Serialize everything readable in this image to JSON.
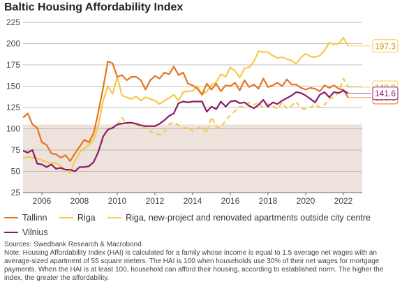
{
  "chart_data": {
    "type": "line",
    "title": "Baltic Housing Affordability Index",
    "xlabel": "",
    "ylabel": "",
    "xlim": [
      2005,
      2023
    ],
    "ylim": [
      25,
      225
    ],
    "y_ticks": [
      25,
      50,
      75,
      100,
      125,
      150,
      175,
      200,
      225
    ],
    "x_ticks": [
      2006,
      2008,
      2010,
      2012,
      2014,
      2016,
      2018,
      2020,
      2022
    ],
    "grid": true,
    "shaded_band": [
      25,
      105
    ],
    "legend_position": "bottom",
    "series": [
      {
        "name": "Tallinn",
        "style": "solid",
        "color": "#e8731e",
        "end_label": "136.6",
        "points": [
          [
            2005.0,
            113
          ],
          [
            2005.25,
            118
          ],
          [
            2005.5,
            105
          ],
          [
            2005.75,
            101
          ],
          [
            2006.0,
            84
          ],
          [
            2006.25,
            81
          ],
          [
            2006.5,
            71
          ],
          [
            2006.75,
            70
          ],
          [
            2007.0,
            66
          ],
          [
            2007.25,
            69
          ],
          [
            2007.5,
            62
          ],
          [
            2007.75,
            71
          ],
          [
            2008.0,
            79
          ],
          [
            2008.25,
            87
          ],
          [
            2008.5,
            84
          ],
          [
            2008.75,
            95
          ],
          [
            2009.0,
            120
          ],
          [
            2009.25,
            148
          ],
          [
            2009.5,
            179
          ],
          [
            2009.75,
            177
          ],
          [
            2010.0,
            161
          ],
          [
            2010.25,
            163
          ],
          [
            2010.5,
            157
          ],
          [
            2010.75,
            161
          ],
          [
            2011.0,
            161
          ],
          [
            2011.25,
            157
          ],
          [
            2011.5,
            146
          ],
          [
            2011.75,
            157
          ],
          [
            2012.0,
            162
          ],
          [
            2012.25,
            159
          ],
          [
            2012.5,
            166
          ],
          [
            2012.75,
            164
          ],
          [
            2013.0,
            173
          ],
          [
            2013.25,
            163
          ],
          [
            2013.5,
            166
          ],
          [
            2013.75,
            153
          ],
          [
            2014.0,
            151
          ],
          [
            2014.25,
            147
          ],
          [
            2014.5,
            140
          ],
          [
            2014.75,
            153
          ],
          [
            2015.0,
            146
          ],
          [
            2015.25,
            153
          ],
          [
            2015.5,
            144
          ],
          [
            2015.75,
            151
          ],
          [
            2016.0,
            150
          ],
          [
            2016.25,
            154
          ],
          [
            2016.5,
            145
          ],
          [
            2016.75,
            157
          ],
          [
            2017.0,
            149
          ],
          [
            2017.25,
            152
          ],
          [
            2017.5,
            147
          ],
          [
            2017.75,
            159
          ],
          [
            2018.0,
            149
          ],
          [
            2018.25,
            151
          ],
          [
            2018.5,
            154
          ],
          [
            2018.75,
            150
          ],
          [
            2019.0,
            158
          ],
          [
            2019.25,
            152
          ],
          [
            2019.5,
            152
          ],
          [
            2019.75,
            148
          ],
          [
            2020.0,
            146
          ],
          [
            2020.25,
            148
          ],
          [
            2020.5,
            147
          ],
          [
            2020.75,
            144
          ],
          [
            2021.0,
            151
          ],
          [
            2021.25,
            148
          ],
          [
            2021.5,
            151
          ],
          [
            2021.75,
            147
          ],
          [
            2022.0,
            146
          ],
          [
            2022.25,
            136.6
          ]
        ]
      },
      {
        "name": "Riga",
        "style": "solid",
        "color": "#f7c948",
        "end_label": "197.3",
        "points": [
          [
            2005.0,
            65
          ],
          [
            2005.25,
            67
          ],
          [
            2005.5,
            66
          ],
          [
            2005.75,
            65
          ],
          [
            2006.0,
            63
          ],
          [
            2006.25,
            61
          ],
          [
            2006.5,
            59
          ],
          [
            2006.75,
            60
          ],
          [
            2007.0,
            56
          ],
          [
            2007.25,
            52
          ],
          [
            2007.5,
            48
          ],
          [
            2007.75,
            62
          ],
          [
            2008.0,
            72
          ],
          [
            2008.25,
            77
          ],
          [
            2008.5,
            81
          ],
          [
            2008.75,
            87
          ],
          [
            2009.0,
            104
          ],
          [
            2009.25,
            133
          ],
          [
            2009.5,
            150
          ],
          [
            2009.75,
            141
          ],
          [
            2010.0,
            161
          ],
          [
            2010.25,
            139
          ],
          [
            2010.5,
            137
          ],
          [
            2010.75,
            135
          ],
          [
            2011.0,
            138
          ],
          [
            2011.25,
            133
          ],
          [
            2011.5,
            137
          ],
          [
            2011.75,
            135
          ],
          [
            2012.0,
            133
          ],
          [
            2012.25,
            129
          ],
          [
            2012.5,
            133
          ],
          [
            2012.75,
            136
          ],
          [
            2013.0,
            140
          ],
          [
            2013.25,
            133
          ],
          [
            2013.5,
            143
          ],
          [
            2013.75,
            144
          ],
          [
            2014.0,
            144
          ],
          [
            2014.25,
            150
          ],
          [
            2014.5,
            140
          ],
          [
            2014.75,
            144
          ],
          [
            2015.0,
            151
          ],
          [
            2015.25,
            155
          ],
          [
            2015.5,
            164
          ],
          [
            2015.75,
            161
          ],
          [
            2016.0,
            172
          ],
          [
            2016.25,
            168
          ],
          [
            2016.5,
            160
          ],
          [
            2016.75,
            171
          ],
          [
            2017.0,
            172
          ],
          [
            2017.25,
            179
          ],
          [
            2017.5,
            191
          ],
          [
            2017.75,
            190
          ],
          [
            2018.0,
            190
          ],
          [
            2018.25,
            186
          ],
          [
            2018.5,
            183
          ],
          [
            2018.75,
            184
          ],
          [
            2019.0,
            182
          ],
          [
            2019.25,
            180
          ],
          [
            2019.5,
            176
          ],
          [
            2019.75,
            184
          ],
          [
            2020.0,
            188
          ],
          [
            2020.25,
            185
          ],
          [
            2020.5,
            184
          ],
          [
            2020.75,
            186
          ],
          [
            2021.0,
            192
          ],
          [
            2021.25,
            201
          ],
          [
            2021.5,
            199
          ],
          [
            2021.75,
            200
          ],
          [
            2022.0,
            207
          ],
          [
            2022.25,
            197.3
          ]
        ]
      },
      {
        "name": "Riga, new-project and renovated apartments outside city centre",
        "style": "dashed",
        "color": "#f7c948",
        "end_label": "148.8",
        "points": [
          [
            2010.0,
            104
          ],
          [
            2010.25,
            113
          ],
          [
            2010.5,
            106
          ],
          [
            2010.75,
            108
          ],
          [
            2011.0,
            105
          ],
          [
            2011.25,
            101
          ],
          [
            2011.5,
            101
          ],
          [
            2011.75,
            97
          ],
          [
            2012.0,
            94
          ],
          [
            2012.25,
            93
          ],
          [
            2012.5,
            96
          ],
          [
            2012.75,
            105
          ],
          [
            2013.0,
            108
          ],
          [
            2013.25,
            104
          ],
          [
            2013.5,
            100
          ],
          [
            2013.75,
            102
          ],
          [
            2014.0,
            97
          ],
          [
            2014.25,
            100
          ],
          [
            2014.5,
            103
          ],
          [
            2014.75,
            95
          ],
          [
            2015.0,
            114
          ],
          [
            2015.25,
            102
          ],
          [
            2015.5,
            101
          ],
          [
            2015.75,
            110
          ],
          [
            2016.0,
            116
          ],
          [
            2016.25,
            121
          ],
          [
            2016.5,
            126
          ],
          [
            2016.75,
            126
          ],
          [
            2017.0,
            131
          ],
          [
            2017.25,
            128
          ],
          [
            2017.5,
            131
          ],
          [
            2017.75,
            124
          ],
          [
            2018.0,
            129
          ],
          [
            2018.25,
            127
          ],
          [
            2018.5,
            123
          ],
          [
            2018.75,
            131
          ],
          [
            2019.0,
            124
          ],
          [
            2019.25,
            127
          ],
          [
            2019.5,
            132
          ],
          [
            2019.75,
            124
          ],
          [
            2020.0,
            123
          ],
          [
            2020.25,
            125
          ],
          [
            2020.5,
            129
          ],
          [
            2020.75,
            125
          ],
          [
            2021.0,
            128
          ],
          [
            2021.25,
            135
          ],
          [
            2021.5,
            137
          ],
          [
            2021.75,
            143
          ],
          [
            2022.0,
            159
          ],
          [
            2022.25,
            148.8
          ]
        ]
      },
      {
        "name": "Vilnius",
        "style": "solid",
        "color": "#8b1a6b",
        "end_label": "141.6",
        "points": [
          [
            2005.0,
            74
          ],
          [
            2005.25,
            72
          ],
          [
            2005.5,
            75
          ],
          [
            2005.75,
            59
          ],
          [
            2006.0,
            58
          ],
          [
            2006.25,
            55
          ],
          [
            2006.5,
            58
          ],
          [
            2006.75,
            53
          ],
          [
            2007.0,
            54
          ],
          [
            2007.25,
            52
          ],
          [
            2007.5,
            52
          ],
          [
            2007.75,
            50
          ],
          [
            2008.0,
            55
          ],
          [
            2008.25,
            55
          ],
          [
            2008.5,
            56
          ],
          [
            2008.75,
            61
          ],
          [
            2009.0,
            73
          ],
          [
            2009.25,
            91
          ],
          [
            2009.5,
            99
          ],
          [
            2009.75,
            101
          ],
          [
            2010.0,
            105
          ],
          [
            2010.25,
            106
          ],
          [
            2010.5,
            107
          ],
          [
            2010.75,
            107
          ],
          [
            2011.0,
            106
          ],
          [
            2011.25,
            104
          ],
          [
            2011.5,
            103
          ],
          [
            2011.75,
            103
          ],
          [
            2012.0,
            103
          ],
          [
            2012.25,
            106
          ],
          [
            2012.5,
            110
          ],
          [
            2012.75,
            115
          ],
          [
            2013.0,
            118
          ],
          [
            2013.25,
            130
          ],
          [
            2013.5,
            132
          ],
          [
            2013.75,
            131
          ],
          [
            2014.0,
            132
          ],
          [
            2014.25,
            132
          ],
          [
            2014.5,
            132
          ],
          [
            2014.75,
            120
          ],
          [
            2015.0,
            126
          ],
          [
            2015.25,
            123
          ],
          [
            2015.5,
            132
          ],
          [
            2015.75,
            126
          ],
          [
            2016.0,
            132
          ],
          [
            2016.25,
            133
          ],
          [
            2016.5,
            130
          ],
          [
            2016.75,
            131
          ],
          [
            2017.0,
            127
          ],
          [
            2017.25,
            124
          ],
          [
            2017.5,
            128
          ],
          [
            2017.75,
            134
          ],
          [
            2018.0,
            126
          ],
          [
            2018.25,
            131
          ],
          [
            2018.5,
            129
          ],
          [
            2018.75,
            133
          ],
          [
            2019.0,
            136
          ],
          [
            2019.25,
            139
          ],
          [
            2019.5,
            143
          ],
          [
            2019.75,
            142
          ],
          [
            2020.0,
            139
          ],
          [
            2020.25,
            135
          ],
          [
            2020.5,
            131
          ],
          [
            2020.75,
            140
          ],
          [
            2021.0,
            143
          ],
          [
            2021.25,
            137
          ],
          [
            2021.5,
            143
          ],
          [
            2021.75,
            142
          ],
          [
            2022.0,
            145
          ],
          [
            2022.25,
            141.6
          ]
        ]
      }
    ]
  },
  "legend": {
    "items": [
      {
        "label": "Tallinn",
        "color": "#e8731e",
        "style": "solid"
      },
      {
        "label": "Riga",
        "color": "#f7c948",
        "style": "solid"
      },
      {
        "label": "Riga, new-project and renovated apartments outside city centre",
        "color": "#f7c948",
        "style": "dashed"
      },
      {
        "label": "Vilnius",
        "color": "#8b1a6b",
        "style": "solid"
      }
    ]
  },
  "notes": {
    "source": "Sources: Swedbank Research & Macrobond",
    "note": "Note: Housing Affordability Index (HAI) is calculated for a family whose income is equal to 1.5 average net wages with an average-sized apartment of 55 square meters. The HAI is 100 when households use 30% of their net wages for mortgage payments. When the HAI is at least 100, household can afford their housing, according to established norm. The higher the index, the greater the affordability."
  },
  "colors": {
    "band": "#ede3dc",
    "grid": "#aaaaaa"
  }
}
